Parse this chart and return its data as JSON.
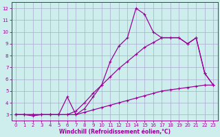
{
  "xlabel": "Windchill (Refroidissement éolien,°C)",
  "bg_color": "#ceeeed",
  "grid_color": "#aaaacc",
  "line_color": "#990099",
  "xlim": [
    -0.5,
    23.5
  ],
  "ylim": [
    2.5,
    12.5
  ],
  "yticks": [
    3,
    4,
    5,
    6,
    7,
    8,
    9,
    10,
    11,
    12
  ],
  "xticks": [
    0,
    1,
    2,
    3,
    4,
    5,
    6,
    7,
    8,
    9,
    10,
    11,
    12,
    13,
    14,
    15,
    16,
    17,
    18,
    19,
    20,
    21,
    22,
    23
  ],
  "line1_x": [
    0,
    1,
    2,
    3,
    4,
    5,
    6,
    7,
    8,
    9,
    10,
    11,
    12,
    13,
    14,
    15,
    16,
    17,
    18,
    19,
    20,
    21,
    22,
    23
  ],
  "line1_y": [
    3.0,
    3.0,
    3.0,
    3.0,
    3.0,
    3.0,
    3.0,
    3.0,
    3.2,
    3.4,
    3.6,
    3.8,
    4.0,
    4.2,
    4.4,
    4.6,
    4.8,
    5.0,
    5.1,
    5.2,
    5.3,
    5.4,
    5.5,
    5.5
  ],
  "line2_x": [
    0,
    1,
    2,
    3,
    4,
    5,
    6,
    7,
    8,
    9,
    10,
    11,
    12,
    13,
    14,
    15,
    16,
    17,
    18,
    19,
    20,
    21,
    22,
    23
  ],
  "line2_y": [
    3.0,
    3.0,
    3.0,
    3.0,
    3.0,
    3.0,
    3.0,
    3.3,
    4.0,
    4.8,
    5.5,
    6.2,
    6.9,
    7.5,
    8.1,
    8.7,
    9.1,
    9.5,
    9.5,
    9.5,
    9.0,
    9.5,
    6.5,
    5.5
  ],
  "line3_x": [
    0,
    1,
    2,
    3,
    4,
    5,
    6,
    7,
    8,
    9,
    10,
    11,
    12,
    13,
    14,
    15,
    16,
    17,
    18,
    19,
    20,
    21,
    22,
    23
  ],
  "line3_y": [
    3.0,
    3.0,
    2.9,
    3.0,
    3.0,
    3.0,
    4.5,
    3.0,
    3.5,
    4.5,
    5.5,
    7.5,
    8.8,
    9.5,
    12.0,
    11.5,
    10.0,
    9.5,
    9.5,
    9.5,
    9.0,
    9.5,
    6.5,
    5.5
  ],
  "marker_size": 3,
  "linewidth": 0.9
}
